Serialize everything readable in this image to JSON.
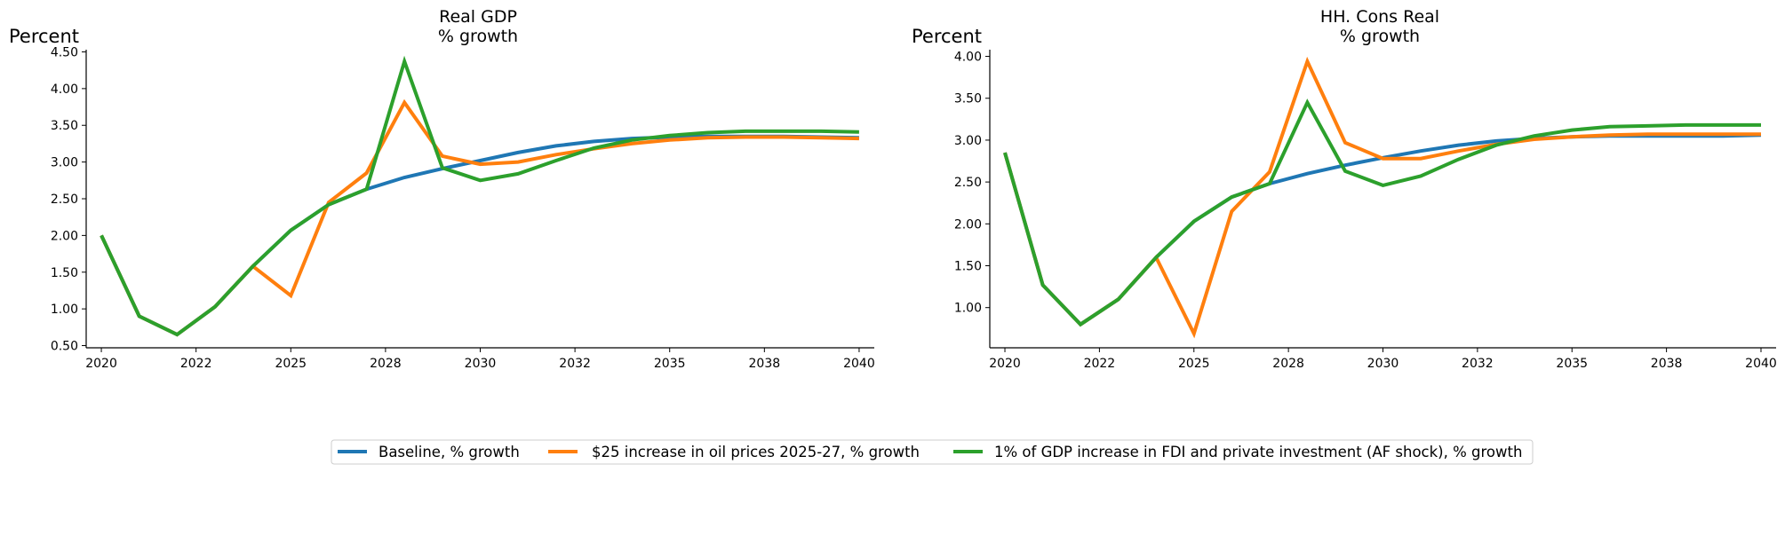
{
  "chart_data": [
    {
      "type": "line",
      "title": "Real GDP",
      "subtitle": "% growth",
      "ylabel": "Percent",
      "xlabel": "",
      "xlim": [
        2019.6,
        2040.4
      ],
      "ylim": [
        0.47,
        4.53
      ],
      "x_tick_labels": [
        "2020",
        "2022",
        "2025",
        "2028",
        "2030",
        "2032",
        "2035",
        "2038",
        "2040"
      ],
      "y_tick_labels": [
        "0.50",
        "1.00",
        "1.50",
        "2.00",
        "2.50",
        "3.00",
        "3.50",
        "4.00",
        "4.50"
      ],
      "x": [
        2020,
        2021,
        2022,
        2023,
        2024,
        2025,
        2026,
        2027,
        2028,
        2029,
        2030,
        2031,
        2032,
        2033,
        2034,
        2035,
        2036,
        2037,
        2038,
        2039,
        2040
      ],
      "series": [
        {
          "name": "Baseline, % growth",
          "color": "#1f77b4",
          "values": [
            2.0,
            0.9,
            0.65,
            1.03,
            1.58,
            2.07,
            2.42,
            2.63,
            2.79,
            2.91,
            3.02,
            3.13,
            3.22,
            3.28,
            3.32,
            3.34,
            3.35,
            3.35,
            3.35,
            3.34,
            3.33
          ]
        },
        {
          "name": "$25 increase in oil prices 2025-27, % growth",
          "color": "#ff7f0e",
          "values": [
            2.0,
            0.9,
            0.65,
            1.03,
            1.58,
            1.18,
            2.45,
            2.85,
            3.81,
            3.08,
            2.97,
            3.0,
            3.1,
            3.18,
            3.25,
            3.3,
            3.33,
            3.34,
            3.34,
            3.33,
            3.32
          ]
        },
        {
          "name": "1% of GDP increase in FDI and private investment (AF shock), % growth",
          "color": "#2ca02c",
          "values": [
            2.0,
            0.9,
            0.65,
            1.03,
            1.58,
            2.07,
            2.42,
            2.63,
            4.37,
            2.92,
            2.75,
            2.84,
            3.02,
            3.19,
            3.3,
            3.36,
            3.4,
            3.42,
            3.42,
            3.42,
            3.41
          ]
        }
      ]
    },
    {
      "type": "line",
      "title": "HH. Cons Real",
      "subtitle": "% growth",
      "ylabel": "Percent",
      "xlabel": "",
      "xlim": [
        2019.6,
        2040.4
      ],
      "ylim": [
        0.52,
        4.08
      ],
      "x_tick_labels": [
        "2020",
        "2022",
        "2025",
        "2028",
        "2030",
        "2032",
        "2035",
        "2038",
        "2040"
      ],
      "y_tick_labels": [
        "1.00",
        "1.50",
        "2.00",
        "2.50",
        "3.00",
        "3.50",
        "4.00"
      ],
      "x": [
        2020,
        2021,
        2022,
        2023,
        2024,
        2025,
        2026,
        2027,
        2028,
        2029,
        2030,
        2031,
        2032,
        2033,
        2034,
        2035,
        2036,
        2037,
        2038,
        2039,
        2040
      ],
      "series": [
        {
          "name": "Baseline, % growth",
          "color": "#1f77b4",
          "values": [
            2.85,
            1.27,
            0.8,
            1.1,
            1.6,
            2.03,
            2.32,
            2.48,
            2.6,
            2.7,
            2.79,
            2.87,
            2.94,
            2.99,
            3.02,
            3.04,
            3.05,
            3.05,
            3.05,
            3.05,
            3.06
          ]
        },
        {
          "name": "$25 increase in oil prices 2025-27, % growth",
          "color": "#ff7f0e",
          "values": [
            2.85,
            1.27,
            0.8,
            1.1,
            1.6,
            0.69,
            2.15,
            2.62,
            3.94,
            2.97,
            2.78,
            2.78,
            2.87,
            2.95,
            3.01,
            3.04,
            3.06,
            3.07,
            3.07,
            3.07,
            3.07
          ]
        },
        {
          "name": "1% of GDP increase in FDI and private investment (AF shock), % growth",
          "color": "#2ca02c",
          "values": [
            2.85,
            1.27,
            0.8,
            1.1,
            1.6,
            2.03,
            2.32,
            2.48,
            3.45,
            2.63,
            2.46,
            2.57,
            2.77,
            2.94,
            3.05,
            3.12,
            3.16,
            3.17,
            3.18,
            3.18,
            3.18
          ]
        }
      ]
    }
  ],
  "legend": {
    "placement": "bottom-center",
    "items": [
      {
        "label": "Baseline, % growth",
        "color": "#1f77b4"
      },
      {
        "label": "$25 increase in oil prices 2025-27, % growth",
        "color": "#ff7f0e"
      },
      {
        "label": "1% of GDP increase in FDI and private investment (AF shock), % growth",
        "color": "#2ca02c"
      }
    ]
  }
}
